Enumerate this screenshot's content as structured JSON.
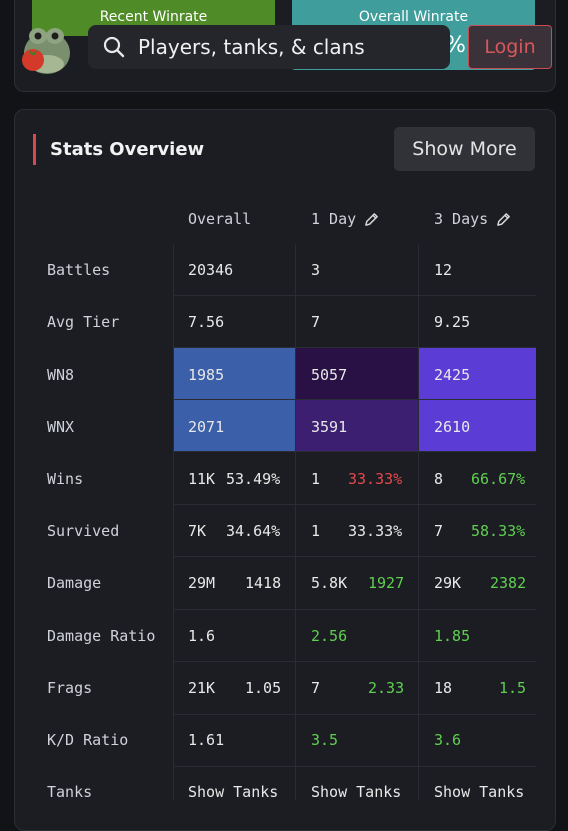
{
  "header": {
    "recent_winrate_label": "Recent Winrate",
    "overall_winrate_label": "Overall Winrate",
    "overall_winrate_partial": "%",
    "search_placeholder": "Players, tanks, & clans",
    "login_label": "Login"
  },
  "stats": {
    "title": "Stats Overview",
    "show_more_label": "Show More",
    "columns": [
      "Overall",
      "1 Day",
      "3 Days"
    ],
    "rows": [
      {
        "label": "Battles",
        "overall": "20346",
        "day1": "3",
        "day3": "12"
      },
      {
        "label": "Avg Tier",
        "overall": "7.56",
        "day1": "7",
        "day3": "9.25"
      },
      {
        "label": "WN8",
        "overall": "1985",
        "day1": "5057",
        "day3": "2425"
      },
      {
        "label": "WNX",
        "overall": "2071",
        "day1": "3591",
        "day3": "2610"
      },
      {
        "label": "Wins",
        "overall_a": "11K",
        "overall_b": "53.49%",
        "day1_a": "1",
        "day1_b": "33.33%",
        "day3_a": "8",
        "day3_b": "66.67%"
      },
      {
        "label": "Survived",
        "overall_a": "7K",
        "overall_b": "34.64%",
        "day1_a": "1",
        "day1_b": "33.33%",
        "day3_a": "7",
        "day3_b": "58.33%"
      },
      {
        "label": "Damage",
        "overall_a": "29M",
        "overall_b": "1418",
        "day1_a": "5.8K",
        "day1_b": "1927",
        "day3_a": "29K",
        "day3_b": "2382"
      },
      {
        "label": "Damage Ratio",
        "overall": "1.6",
        "day1": "2.56",
        "day3": "1.85"
      },
      {
        "label": "Frags",
        "overall_a": "21K",
        "overall_b": "1.05",
        "day1_a": "7",
        "day1_b": "2.33",
        "day3_a": "18",
        "day3_b": "1.5"
      },
      {
        "label": "K/D Ratio",
        "overall": "1.61",
        "day1": "3.5",
        "day3": "3.6"
      },
      {
        "label": "Tanks",
        "overall": "Show Tanks",
        "day1": "Show Tanks",
        "day3": "Show Tanks"
      }
    ]
  },
  "colors": {
    "wn8_overall": "#3b5fa9",
    "wn8_day1": "#2a1145",
    "wn8_day3": "#5b3dd6",
    "wnx_overall": "#3b5fa9",
    "wnx_day1": "#3d1f72",
    "wnx_day3": "#5b3dd6",
    "accent": "#d9474f",
    "positive": "#5ed04f",
    "negative": "#e5484d"
  }
}
